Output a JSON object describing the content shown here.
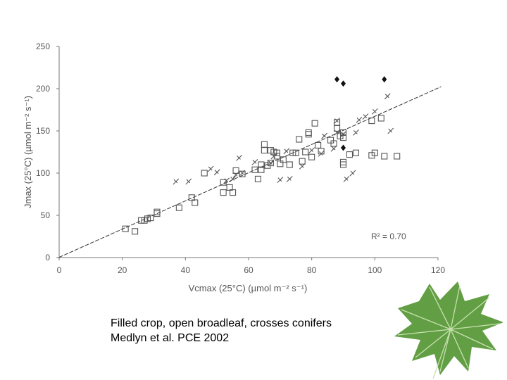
{
  "caption": {
    "line1": "Filled crop, open broadleaf, crosses conifers",
    "line2": "Medlyn et al. PCE 2002"
  },
  "decoration": {
    "leaf_color": "#5a9a3a"
  },
  "chart_data": {
    "type": "scatter",
    "title": "",
    "xlabel": "Vcmax (25°C) (µmol m⁻² s⁻¹)",
    "ylabel": "Jmax (25°C) (µmol m⁻² s⁻¹)",
    "xlim": [
      0,
      120
    ],
    "ylim": [
      0,
      250
    ],
    "x_ticks": [
      0,
      20,
      40,
      60,
      80,
      100,
      120
    ],
    "y_ticks": [
      0,
      50,
      100,
      150,
      200,
      250
    ],
    "grid": false,
    "annotation": "R² = 0.70",
    "regression_line": {
      "slope": 1.67,
      "intercept": 0.3
    },
    "series": [
      {
        "marker": "filled-diamond",
        "points": [
          [
            88,
            211
          ],
          [
            90,
            206
          ],
          [
            90,
            130
          ],
          [
            103,
            211
          ]
        ]
      },
      {
        "marker": "open-square",
        "points": [
          [
            21,
            34
          ],
          [
            24,
            31
          ],
          [
            26,
            44
          ],
          [
            27,
            44
          ],
          [
            28,
            46
          ],
          [
            29,
            47
          ],
          [
            31,
            52
          ],
          [
            31,
            54
          ],
          [
            38,
            59
          ],
          [
            42,
            71
          ],
          [
            43,
            65
          ],
          [
            46,
            100
          ],
          [
            52,
            89
          ],
          [
            52,
            77
          ],
          [
            54,
            83
          ],
          [
            55,
            77
          ],
          [
            56,
            103
          ],
          [
            58,
            99
          ],
          [
            62,
            104
          ],
          [
            63,
            93
          ],
          [
            64,
            110
          ],
          [
            64,
            104
          ],
          [
            65,
            127
          ],
          [
            65,
            134
          ],
          [
            66,
            109
          ],
          [
            67,
            112
          ],
          [
            67,
            127
          ],
          [
            68,
            125
          ],
          [
            69,
            124
          ],
          [
            69,
            120
          ],
          [
            70,
            111
          ],
          [
            71,
            116
          ],
          [
            73,
            110
          ],
          [
            74,
            124
          ],
          [
            75,
            124
          ],
          [
            76,
            140
          ],
          [
            77,
            114
          ],
          [
            78,
            125
          ],
          [
            79,
            146
          ],
          [
            79,
            148
          ],
          [
            80,
            119
          ],
          [
            81,
            159
          ],
          [
            82,
            133
          ],
          [
            83,
            126
          ],
          [
            86,
            139
          ],
          [
            87,
            135
          ],
          [
            88,
            153
          ],
          [
            88,
            160
          ],
          [
            89,
            144
          ],
          [
            90,
            148
          ],
          [
            90,
            142
          ],
          [
            90,
            113
          ],
          [
            90,
            110
          ],
          [
            92,
            122
          ],
          [
            94,
            124
          ],
          [
            99,
            162
          ],
          [
            99,
            121
          ],
          [
            100,
            124
          ],
          [
            102,
            165
          ],
          [
            103,
            120
          ],
          [
            107,
            120
          ]
        ]
      },
      {
        "marker": "cross",
        "points": [
          [
            37,
            90
          ],
          [
            41,
            90
          ],
          [
            48,
            105
          ],
          [
            50,
            101
          ],
          [
            53,
            91
          ],
          [
            55,
            93
          ],
          [
            56,
            98
          ],
          [
            57,
            118
          ],
          [
            58,
            100
          ],
          [
            62,
            113
          ],
          [
            67,
            112
          ],
          [
            68,
            120
          ],
          [
            70,
            92
          ],
          [
            72,
            126
          ],
          [
            73,
            93
          ],
          [
            77,
            108
          ],
          [
            80,
            127
          ],
          [
            83,
            123
          ],
          [
            84,
            144
          ],
          [
            87,
            129
          ],
          [
            88,
            162
          ],
          [
            88,
            148
          ],
          [
            90,
            146
          ],
          [
            91,
            93
          ],
          [
            93,
            100
          ],
          [
            94,
            148
          ],
          [
            95,
            163
          ],
          [
            97,
            167
          ],
          [
            100,
            173
          ],
          [
            104,
            191
          ],
          [
            105,
            150
          ]
        ]
      }
    ]
  }
}
